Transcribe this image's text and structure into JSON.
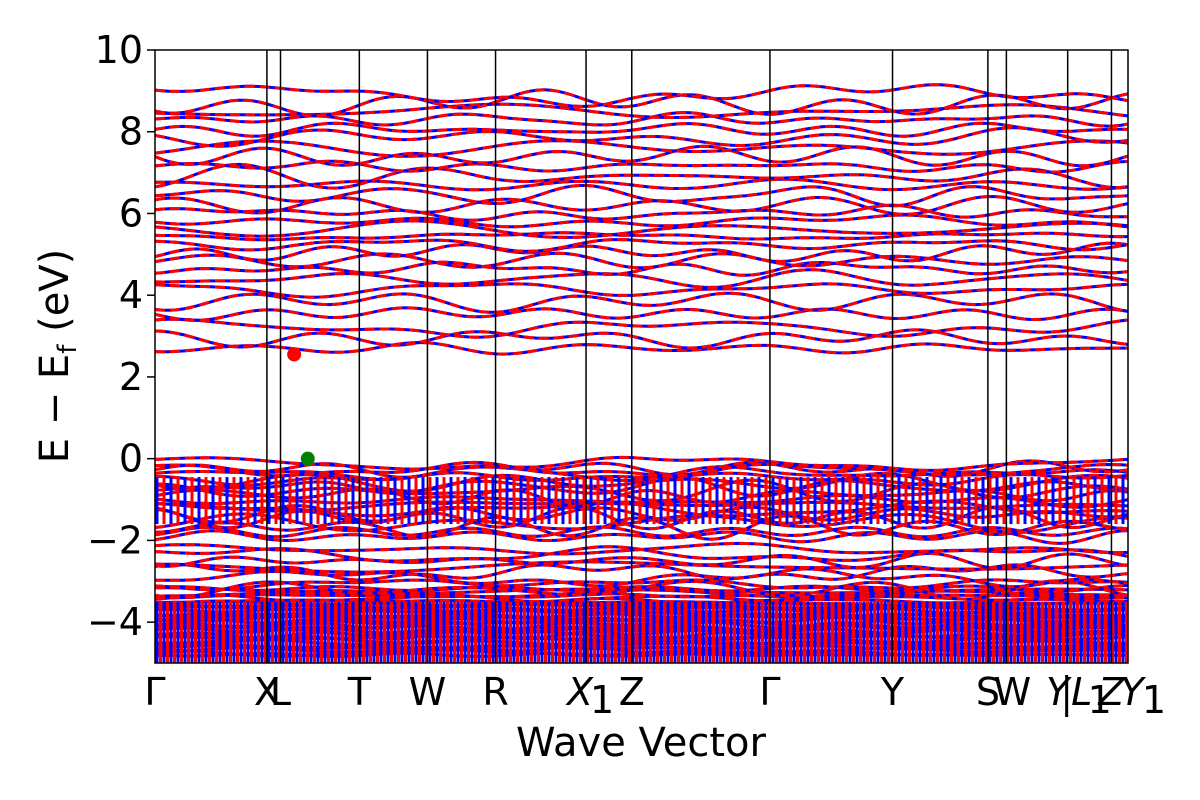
{
  "chart_data": {
    "type": "line",
    "xlabel": "Wave Vector",
    "ylabel": "E − E_f (eV)",
    "ylabel_main": "E − E",
    "ylabel_sub": "f",
    "ylabel_unit": " (eV)",
    "ylim": [
      -5,
      10
    ],
    "y_ticks": [
      -4,
      -2,
      0,
      2,
      4,
      6,
      8,
      10
    ],
    "y_tick_labels": [
      "−4",
      "−2",
      "0",
      "2",
      "4",
      "6",
      "8",
      "10"
    ],
    "x_tick_labels": [
      "Γ",
      "X",
      "L",
      "T",
      "W",
      "R",
      "X",
      "1",
      "Z",
      "Γ",
      "Y",
      "S",
      "W",
      "Y",
      "L",
      "1",
      "Z",
      "Y",
      "1"
    ],
    "high_symmetry_points": [
      {
        "label": "Γ",
        "x": 0.0
      },
      {
        "label": "X",
        "x": 0.115
      },
      {
        "label": "L",
        "x": 0.129
      },
      {
        "label": "T",
        "x": 0.21
      },
      {
        "label": "W",
        "x": 0.28
      },
      {
        "label": "R",
        "x": 0.35
      },
      {
        "label": "X₁",
        "x": 0.443
      },
      {
        "label": "Z",
        "x": 0.49
      },
      {
        "label": "Γ",
        "x": 0.632
      },
      {
        "label": "Y",
        "x": 0.758
      },
      {
        "label": "S",
        "x": 0.856
      },
      {
        "label": "W",
        "x": 0.875
      },
      {
        "label": "Y|L₁",
        "x": 0.938
      },
      {
        "label": "Z",
        "x": 0.983
      },
      {
        "label": "Y₁",
        "x": 1.0
      }
    ],
    "series": [
      {
        "role": "spin-up",
        "color": "#0000ff",
        "style": "solid"
      },
      {
        "role": "spin-down",
        "color": "#ff0000",
        "style": "dashed"
      }
    ],
    "markers": [
      {
        "role": "cbm",
        "color": "#ff0000",
        "x": 0.143,
        "y": 2.55
      },
      {
        "role": "vbm",
        "color": "#008000",
        "x": 0.157,
        "y": 0.0
      }
    ],
    "band_gap_region": {
      "valence_top": 0.0,
      "conduction_bottom": 2.55
    }
  }
}
